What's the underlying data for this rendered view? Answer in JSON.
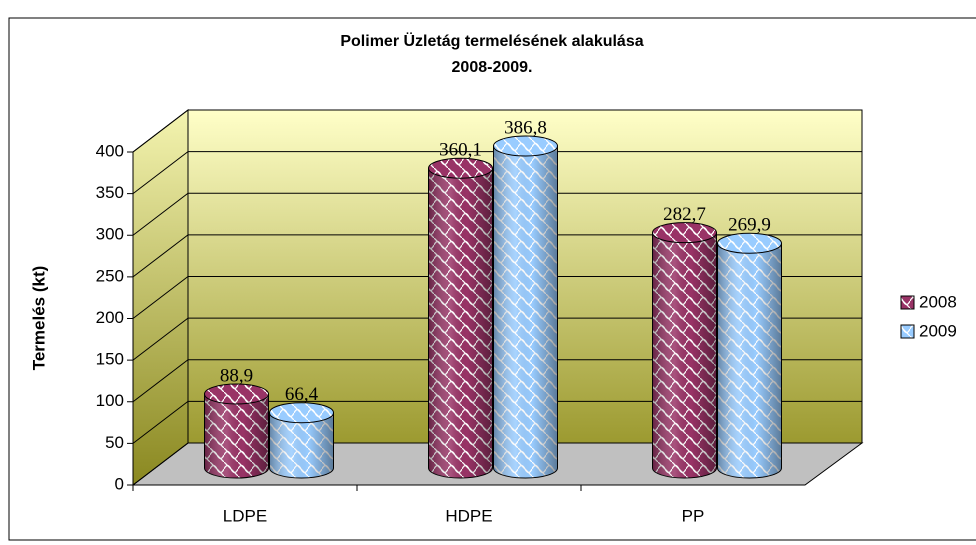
{
  "chart_data": {
    "type": "bar3d",
    "title": "Polimer Üzletág termelésének alakulása",
    "subtitle": "2008-2009.",
    "y_label": "Termelés (kt)",
    "categories": [
      "LDPE",
      "HDPE",
      "PP"
    ],
    "series": [
      {
        "name": "2008",
        "color": "#993366",
        "values": [
          88.9,
          360.1,
          282.7
        ],
        "value_labels": [
          "88,9",
          "360,1",
          "282,7"
        ]
      },
      {
        "name": "2009",
        "color": "#99ccff",
        "values": [
          66.4,
          386.8,
          269.9
        ],
        "value_labels": [
          "66,4",
          "386,8",
          "269,9"
        ]
      }
    ],
    "ylim": [
      0,
      400
    ],
    "yticks": [
      0,
      50,
      100,
      150,
      200,
      250,
      300,
      350,
      400
    ],
    "grid": true,
    "legend": "right"
  }
}
